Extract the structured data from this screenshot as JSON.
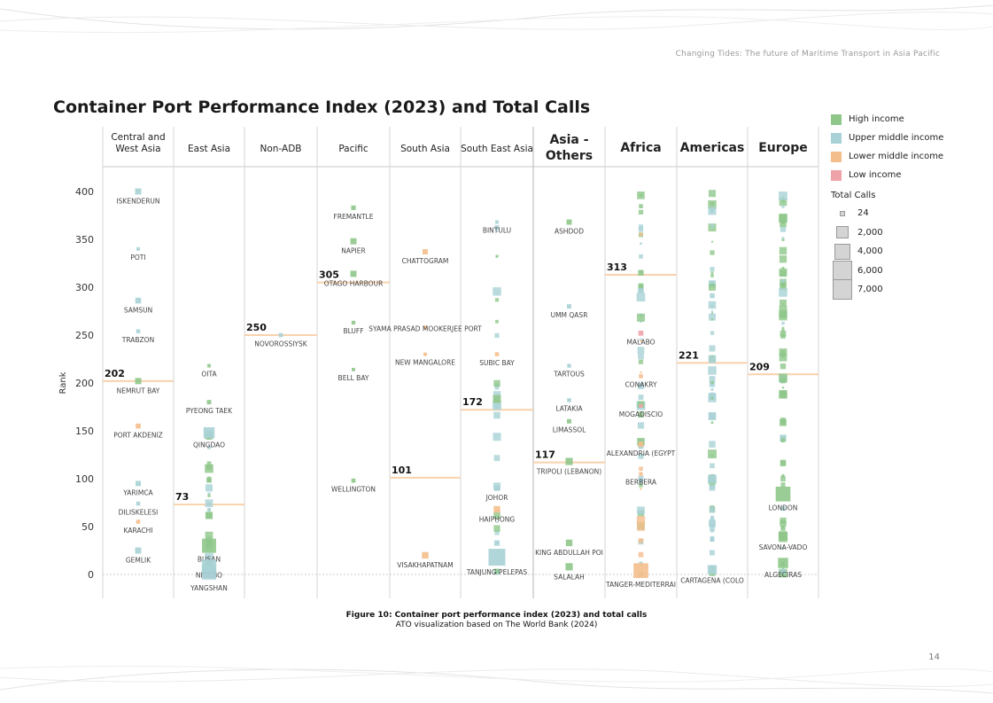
{
  "page": {
    "header": "Changing Tides: The future of Maritime Transport in Asia Pacific",
    "page_number": "14"
  },
  "caption": {
    "title": "Figure 10: Container port performance index (2023) and total calls",
    "source": "ATO visualization based on The World Bank (2024)"
  },
  "legend": {
    "income": [
      {
        "label": "High income",
        "color": "#8fc78a"
      },
      {
        "label": "Upper middle income",
        "color": "#a9d2d6"
      },
      {
        "label": "Lower middle income",
        "color": "#f4be8c"
      },
      {
        "label": "Low income",
        "color": "#eea3a8"
      }
    ],
    "calls_title": "Total Calls",
    "calls": [
      {
        "label": "24",
        "value": 24
      },
      {
        "label": "2,000",
        "value": 2000
      },
      {
        "label": "4,000",
        "value": 4000
      },
      {
        "label": "6,000",
        "value": 6000
      },
      {
        "label": "7,000",
        "value": 7000
      }
    ]
  },
  "chart_data": {
    "type": "scatter",
    "title": "Container Port Performance Index (2023) and Total Calls",
    "ylabel": "Rank",
    "xlabel": "",
    "ylim": [
      0,
      400
    ],
    "yticks": [
      0,
      50,
      100,
      150,
      200,
      250,
      300,
      350,
      400
    ],
    "colors": {
      "high": "#8fc78a",
      "upper": "#a9d2d6",
      "lower": "#f4be8c",
      "low": "#eea3a8"
    },
    "regions": [
      {
        "name": "Central and West Asia",
        "label_lines": [
          "Central and",
          "West Asia"
        ],
        "big": false,
        "median": 202,
        "ports": [
          {
            "name": "ISKENDERUN",
            "rank": 400,
            "income": "upper",
            "calls": 500
          },
          {
            "name": "POTI",
            "rank": 340,
            "income": "upper",
            "calls": 50
          },
          {
            "name": "SAMSUN",
            "rank": 286,
            "income": "upper",
            "calls": 400
          },
          {
            "name": "TRABZON",
            "rank": 254,
            "income": "upper",
            "calls": 100
          },
          {
            "name": "NEMRUT BAY",
            "rank": 202,
            "income": "high",
            "calls": 500
          },
          {
            "name": "PORT AKDENIZ",
            "rank": 155,
            "income": "lower",
            "calls": 250
          },
          {
            "name": "YARIMCA",
            "rank": 95,
            "income": "upper",
            "calls": 300
          },
          {
            "name": "DILISKELESI",
            "rank": 74,
            "income": "upper",
            "calls": 100
          },
          {
            "name": "KARACHI",
            "rank": 55,
            "income": "lower",
            "calls": 100
          },
          {
            "name": "GEMLIK",
            "rank": 25,
            "income": "upper",
            "calls": 500
          }
        ]
      },
      {
        "name": "East Asia",
        "label_lines": [
          "East Asia"
        ],
        "big": false,
        "median": 73,
        "ports": [
          {
            "name": "OITA",
            "rank": 218,
            "income": "high",
            "calls": 50
          },
          {
            "name": "PYEONG TAEK",
            "rank": 180,
            "income": "high",
            "calls": 150
          },
          {
            "name": "QINGDAO",
            "rank": 148,
            "income": "upper",
            "calls": 2500
          },
          {
            "name": "BUSAN",
            "rank": 30,
            "income": "high",
            "calls": 4500
          },
          {
            "name": "NINGBO",
            "rank": 8,
            "income": "upper",
            "calls": 4800
          },
          {
            "name": "YANGSHAN",
            "rank": 2,
            "income": "upper",
            "calls": 4500
          }
        ]
      },
      {
        "name": "Non-ADB",
        "label_lines": [
          "Non-ADB"
        ],
        "big": false,
        "median": 250,
        "ports": [
          {
            "name": "NOVOROSSIYSK",
            "rank": 250,
            "income": "upper",
            "calls": 120
          }
        ]
      },
      {
        "name": "Pacific",
        "label_lines": [
          "Pacific"
        ],
        "big": false,
        "median": 305,
        "ports": [
          {
            "name": "FREMANTLE",
            "rank": 383,
            "income": "high",
            "calls": 180
          },
          {
            "name": "NAPIER",
            "rank": 348,
            "income": "high",
            "calls": 500
          },
          {
            "name": "OTAGO HARBOUR",
            "rank": 314,
            "income": "high",
            "calls": 500
          },
          {
            "name": "BLUFF",
            "rank": 263,
            "income": "high",
            "calls": 80
          },
          {
            "name": "BELL BAY",
            "rank": 214,
            "income": "high",
            "calls": 50
          },
          {
            "name": "WELLINGTON",
            "rank": 98,
            "income": "high",
            "calls": 120
          }
        ]
      },
      {
        "name": "South Asia",
        "label_lines": [
          "South Asia"
        ],
        "big": false,
        "median": 101,
        "ports": [
          {
            "name": "CHATTOGRAM",
            "rank": 337,
            "income": "lower",
            "calls": 300
          },
          {
            "name": "SYAMA PRASAD MOOKERJEE PORT",
            "rank": 258,
            "income": "lower",
            "calls": 80
          },
          {
            "name": "NEW MANGALORE",
            "rank": 230,
            "income": "lower",
            "calls": 50
          },
          {
            "name": "VISAKHAPATNAM",
            "rank": 20,
            "income": "lower",
            "calls": 600
          }
        ]
      },
      {
        "name": "South East Asia",
        "label_lines": [
          "South East Asia"
        ],
        "big": false,
        "median": 172,
        "ports": [
          {
            "name": "BINTULU",
            "rank": 368,
            "income": "upper",
            "calls": 50
          },
          {
            "name": "SUBIC BAY",
            "rank": 230,
            "income": "lower",
            "calls": 100
          },
          {
            "name": "JOHOR",
            "rank": 90,
            "income": "upper",
            "calls": 300
          },
          {
            "name": "HAIPHONG",
            "rank": 68,
            "income": "lower",
            "calls": 600
          },
          {
            "name": "TANJUNG PELEPAS",
            "rank": 18,
            "income": "upper",
            "calls": 7000
          }
        ]
      },
      {
        "name": "Asia - Others",
        "label_lines": [
          "Asia -",
          "Others"
        ],
        "big": true,
        "median": 117,
        "ports": [
          {
            "name": "ASHDOD",
            "rank": 368,
            "income": "high",
            "calls": 300
          },
          {
            "name": "UMM QASR",
            "rank": 280,
            "income": "upper",
            "calls": 150
          },
          {
            "name": "TARTOUS",
            "rank": 218,
            "income": "upper",
            "calls": 80
          },
          {
            "name": "LATAKIA",
            "rank": 182,
            "income": "upper",
            "calls": 100
          },
          {
            "name": "LIMASSOL",
            "rank": 160,
            "income": "high",
            "calls": 150
          },
          {
            "name": "TRIPOLI (LEBANON)",
            "rank": 118,
            "income": "high",
            "calls": 800
          },
          {
            "name": "KING ABDULLAH POI",
            "rank": 33,
            "income": "high",
            "calls": 600
          },
          {
            "name": "SALALAH",
            "rank": 8,
            "income": "high",
            "calls": 800
          }
        ]
      },
      {
        "name": "Africa",
        "label_lines": [
          "Africa"
        ],
        "big": true,
        "median": 313,
        "ports": [
          {
            "name": "MALABO",
            "rank": 252,
            "income": "low",
            "calls": 250
          },
          {
            "name": "CONAKRY",
            "rank": 207,
            "income": "lower",
            "calls": 100
          },
          {
            "name": "MOGADISCIO",
            "rank": 176,
            "income": "low",
            "calls": 80
          },
          {
            "name": "ALEXANDRIA (EGYPT",
            "rank": 136,
            "income": "lower",
            "calls": 300
          },
          {
            "name": "BERBERA",
            "rank": 105,
            "income": "lower",
            "calls": 80
          },
          {
            "name": "TANGER-MEDITERRAI",
            "rank": 4,
            "income": "lower",
            "calls": 5000
          }
        ]
      },
      {
        "name": "Americas",
        "label_lines": [
          "Americas"
        ],
        "big": true,
        "median": 221,
        "ports": [
          {
            "name": "CARTAGENA (COLO",
            "rank": 5,
            "income": "upper",
            "calls": 1500
          }
        ]
      },
      {
        "name": "Europe",
        "label_lines": [
          "Europe"
        ],
        "big": true,
        "median": 209,
        "ports": [
          {
            "name": "LONDON",
            "rank": 84,
            "income": "high",
            "calls": 5000
          },
          {
            "name": "SAVONA-VADO",
            "rank": 40,
            "income": "high",
            "calls": 1500
          },
          {
            "name": "ALGECIRAS",
            "rank": 12,
            "income": "high",
            "calls": 2000
          }
        ]
      }
    ]
  }
}
